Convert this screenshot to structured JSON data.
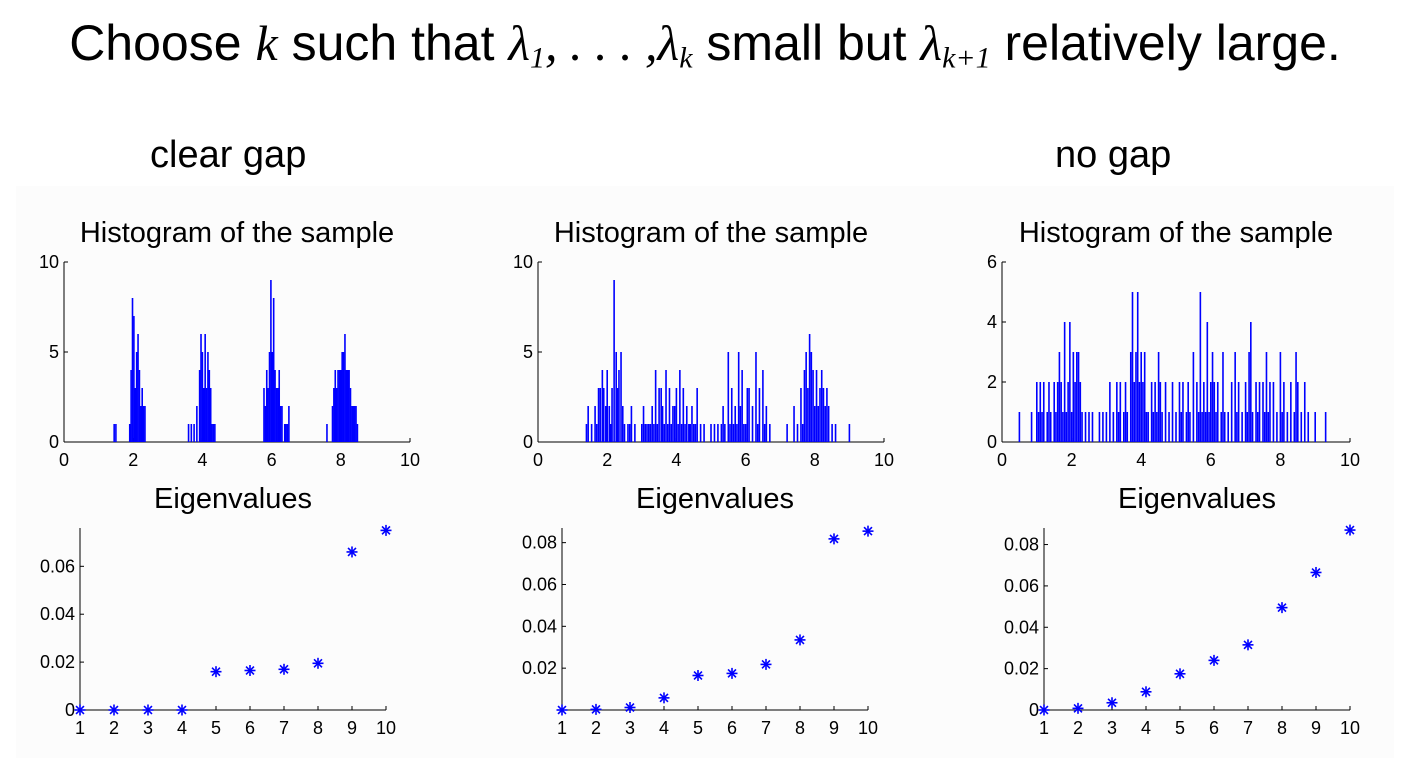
{
  "headline": {
    "choose": "Choose",
    "k": "k",
    "such_that": "such that",
    "lambda": "λ",
    "sub_1": "1",
    "sep": ", . . . ,",
    "sub_k": "k",
    "small_but": "small but",
    "sub_k1": "k+1",
    "relatively_large": "relatively large."
  },
  "labels": {
    "clear_gap": "clear gap",
    "no_gap": "no gap"
  },
  "colors": {
    "series": "#0000ff",
    "axis": "#000000",
    "background": "#ffffff"
  },
  "chart_data": [
    {
      "type": "bar",
      "title": "Histogram of the sample",
      "xlim": [
        0,
        10
      ],
      "ylim": [
        0,
        10
      ],
      "xticks": [
        0,
        2,
        4,
        6,
        8,
        10
      ],
      "yticks": [
        0,
        5,
        10
      ],
      "bin_width": 0.04,
      "bars": [
        [
          1.45,
          1
        ],
        [
          1.5,
          1
        ],
        [
          1.9,
          1
        ],
        [
          1.94,
          4
        ],
        [
          1.98,
          8
        ],
        [
          2.02,
          7
        ],
        [
          2.06,
          3
        ],
        [
          2.1,
          5
        ],
        [
          2.14,
          6
        ],
        [
          2.18,
          4
        ],
        [
          2.22,
          2
        ],
        [
          2.26,
          3
        ],
        [
          2.3,
          2
        ],
        [
          2.34,
          2
        ],
        [
          3.6,
          1
        ],
        [
          3.68,
          1
        ],
        [
          3.76,
          1
        ],
        [
          3.84,
          2
        ],
        [
          3.92,
          4
        ],
        [
          3.96,
          6
        ],
        [
          4.0,
          5
        ],
        [
          4.04,
          3
        ],
        [
          4.08,
          6
        ],
        [
          4.12,
          3
        ],
        [
          4.16,
          5
        ],
        [
          4.2,
          4
        ],
        [
          4.24,
          3
        ],
        [
          4.28,
          1
        ],
        [
          4.32,
          1
        ],
        [
          4.36,
          1
        ],
        [
          5.78,
          3
        ],
        [
          5.82,
          2
        ],
        [
          5.86,
          4
        ],
        [
          5.9,
          3
        ],
        [
          5.94,
          5
        ],
        [
          5.98,
          9
        ],
        [
          6.02,
          5
        ],
        [
          6.06,
          8
        ],
        [
          6.1,
          4
        ],
        [
          6.14,
          3
        ],
        [
          6.18,
          3
        ],
        [
          6.22,
          4
        ],
        [
          6.26,
          2
        ],
        [
          6.3,
          2
        ],
        [
          6.38,
          1
        ],
        [
          6.42,
          1
        ],
        [
          6.46,
          1
        ],
        [
          6.5,
          2
        ],
        [
          7.6,
          1
        ],
        [
          7.76,
          2
        ],
        [
          7.8,
          3
        ],
        [
          7.84,
          4
        ],
        [
          7.88,
          3
        ],
        [
          7.92,
          4
        ],
        [
          7.96,
          4
        ],
        [
          8.0,
          4
        ],
        [
          8.04,
          5
        ],
        [
          8.08,
          5
        ],
        [
          8.12,
          6
        ],
        [
          8.16,
          4
        ],
        [
          8.2,
          4
        ],
        [
          8.24,
          4
        ],
        [
          8.28,
          3
        ],
        [
          8.32,
          2
        ],
        [
          8.36,
          2
        ],
        [
          8.4,
          2
        ],
        [
          8.44,
          2
        ],
        [
          8.48,
          1
        ]
      ]
    },
    {
      "type": "bar",
      "title": "Histogram of the sample",
      "xlim": [
        0,
        10
      ],
      "ylim": [
        0,
        10
      ],
      "xticks": [
        0,
        2,
        4,
        6,
        8,
        10
      ],
      "yticks": [
        0,
        5,
        10
      ],
      "bin_width": 0.04,
      "bars": [
        [
          1.4,
          1
        ],
        [
          1.45,
          2
        ],
        [
          1.55,
          1
        ],
        [
          1.65,
          2
        ],
        [
          1.7,
          1
        ],
        [
          1.75,
          3
        ],
        [
          1.8,
          3
        ],
        [
          1.86,
          4
        ],
        [
          1.9,
          3
        ],
        [
          1.96,
          2
        ],
        [
          2.0,
          4
        ],
        [
          2.06,
          2
        ],
        [
          2.1,
          1
        ],
        [
          2.14,
          3
        ],
        [
          2.2,
          9
        ],
        [
          2.26,
          5
        ],
        [
          2.3,
          3
        ],
        [
          2.34,
          4
        ],
        [
          2.4,
          5
        ],
        [
          2.45,
          2
        ],
        [
          2.5,
          1
        ],
        [
          2.6,
          1
        ],
        [
          2.65,
          1
        ],
        [
          2.7,
          2
        ],
        [
          2.8,
          1
        ],
        [
          3.0,
          1
        ],
        [
          3.05,
          2
        ],
        [
          3.1,
          1
        ],
        [
          3.15,
          1
        ],
        [
          3.2,
          1
        ],
        [
          3.25,
          1
        ],
        [
          3.3,
          2
        ],
        [
          3.35,
          1
        ],
        [
          3.4,
          4
        ],
        [
          3.45,
          1
        ],
        [
          3.5,
          3
        ],
        [
          3.56,
          3
        ],
        [
          3.6,
          2
        ],
        [
          3.65,
          1
        ],
        [
          3.7,
          4
        ],
        [
          3.75,
          1
        ],
        [
          3.8,
          3
        ],
        [
          3.85,
          1
        ],
        [
          3.9,
          2
        ],
        [
          3.95,
          2
        ],
        [
          4.0,
          3
        ],
        [
          4.05,
          1
        ],
        [
          4.1,
          4
        ],
        [
          4.15,
          1
        ],
        [
          4.2,
          3
        ],
        [
          4.25,
          1
        ],
        [
          4.3,
          2
        ],
        [
          4.36,
          1
        ],
        [
          4.4,
          1
        ],
        [
          4.45,
          2
        ],
        [
          4.5,
          1
        ],
        [
          4.55,
          1
        ],
        [
          4.6,
          3
        ],
        [
          4.7,
          1
        ],
        [
          4.8,
          1
        ],
        [
          5.0,
          1
        ],
        [
          5.1,
          1
        ],
        [
          5.2,
          1
        ],
        [
          5.3,
          1
        ],
        [
          5.35,
          2
        ],
        [
          5.4,
          1
        ],
        [
          5.5,
          5
        ],
        [
          5.55,
          1
        ],
        [
          5.6,
          3
        ],
        [
          5.65,
          1
        ],
        [
          5.7,
          2
        ],
        [
          5.75,
          1
        ],
        [
          5.8,
          5
        ],
        [
          5.85,
          2
        ],
        [
          5.9,
          4
        ],
        [
          5.95,
          1
        ],
        [
          6.0,
          1
        ],
        [
          6.05,
          3
        ],
        [
          6.1,
          3
        ],
        [
          6.2,
          2
        ],
        [
          6.3,
          5
        ],
        [
          6.35,
          1
        ],
        [
          6.4,
          3
        ],
        [
          6.5,
          4
        ],
        [
          6.55,
          1
        ],
        [
          6.6,
          2
        ],
        [
          6.7,
          1
        ],
        [
          7.2,
          1
        ],
        [
          7.4,
          2
        ],
        [
          7.5,
          1
        ],
        [
          7.6,
          3
        ],
        [
          7.65,
          1
        ],
        [
          7.7,
          4
        ],
        [
          7.75,
          5
        ],
        [
          7.8,
          3
        ],
        [
          7.85,
          6
        ],
        [
          7.9,
          5
        ],
        [
          7.95,
          4
        ],
        [
          8.0,
          2
        ],
        [
          8.05,
          4
        ],
        [
          8.1,
          2
        ],
        [
          8.15,
          3
        ],
        [
          8.2,
          4
        ],
        [
          8.25,
          3
        ],
        [
          8.3,
          2
        ],
        [
          8.35,
          3
        ],
        [
          8.4,
          2
        ],
        [
          8.5,
          1
        ],
        [
          8.6,
          1
        ],
        [
          9.0,
          1
        ]
      ]
    },
    {
      "type": "bar",
      "title": "Histogram of the sample",
      "xlim": [
        0,
        10
      ],
      "ylim": [
        0,
        6
      ],
      "xticks": [
        0,
        2,
        4,
        6,
        8,
        10
      ],
      "yticks": [
        0,
        2,
        4,
        6
      ],
      "bin_width": 0.04,
      "bars": [
        [
          0.5,
          1
        ],
        [
          0.85,
          1
        ],
        [
          1.0,
          2
        ],
        [
          1.05,
          1
        ],
        [
          1.1,
          2
        ],
        [
          1.15,
          1
        ],
        [
          1.2,
          2
        ],
        [
          1.3,
          1
        ],
        [
          1.35,
          2
        ],
        [
          1.4,
          1
        ],
        [
          1.5,
          2
        ],
        [
          1.55,
          1
        ],
        [
          1.6,
          2
        ],
        [
          1.65,
          3
        ],
        [
          1.7,
          2
        ],
        [
          1.75,
          1
        ],
        [
          1.8,
          4
        ],
        [
          1.85,
          1
        ],
        [
          1.9,
          2
        ],
        [
          1.95,
          4
        ],
        [
          2.0,
          1
        ],
        [
          2.05,
          3
        ],
        [
          2.1,
          2
        ],
        [
          2.15,
          3
        ],
        [
          2.2,
          3
        ],
        [
          2.25,
          2
        ],
        [
          2.3,
          1
        ],
        [
          2.4,
          1
        ],
        [
          2.5,
          1
        ],
        [
          2.6,
          1
        ],
        [
          2.8,
          1
        ],
        [
          2.9,
          1
        ],
        [
          3.0,
          1
        ],
        [
          3.1,
          2
        ],
        [
          3.2,
          1
        ],
        [
          3.3,
          2
        ],
        [
          3.35,
          1
        ],
        [
          3.4,
          2
        ],
        [
          3.5,
          1
        ],
        [
          3.55,
          2
        ],
        [
          3.6,
          1
        ],
        [
          3.7,
          3
        ],
        [
          3.75,
          5
        ],
        [
          3.8,
          2
        ],
        [
          3.85,
          3
        ],
        [
          3.9,
          5
        ],
        [
          3.95,
          2
        ],
        [
          4.0,
          3
        ],
        [
          4.05,
          2
        ],
        [
          4.1,
          3
        ],
        [
          4.15,
          1
        ],
        [
          4.2,
          1
        ],
        [
          4.3,
          2
        ],
        [
          4.35,
          1
        ],
        [
          4.4,
          2
        ],
        [
          4.45,
          1
        ],
        [
          4.5,
          3
        ],
        [
          4.55,
          2
        ],
        [
          4.6,
          1
        ],
        [
          4.7,
          2
        ],
        [
          4.8,
          1
        ],
        [
          4.9,
          2
        ],
        [
          5.0,
          1
        ],
        [
          5.1,
          2
        ],
        [
          5.15,
          1
        ],
        [
          5.2,
          2
        ],
        [
          5.3,
          1
        ],
        [
          5.35,
          2
        ],
        [
          5.4,
          1
        ],
        [
          5.5,
          3
        ],
        [
          5.6,
          2
        ],
        [
          5.65,
          1
        ],
        [
          5.7,
          5
        ],
        [
          5.75,
          1
        ],
        [
          5.8,
          2
        ],
        [
          5.85,
          1
        ],
        [
          5.9,
          4
        ],
        [
          5.95,
          1
        ],
        [
          6.0,
          2
        ],
        [
          6.05,
          3
        ],
        [
          6.1,
          2
        ],
        [
          6.15,
          1
        ],
        [
          6.2,
          2
        ],
        [
          6.3,
          1
        ],
        [
          6.35,
          3
        ],
        [
          6.4,
          1
        ],
        [
          6.5,
          1
        ],
        [
          6.6,
          2
        ],
        [
          6.7,
          3
        ],
        [
          6.75,
          1
        ],
        [
          6.8,
          2
        ],
        [
          6.9,
          1
        ],
        [
          7.0,
          2
        ],
        [
          7.05,
          1
        ],
        [
          7.1,
          3
        ],
        [
          7.15,
          4
        ],
        [
          7.2,
          1
        ],
        [
          7.3,
          2
        ],
        [
          7.35,
          1
        ],
        [
          7.4,
          2
        ],
        [
          7.5,
          2
        ],
        [
          7.55,
          1
        ],
        [
          7.6,
          3
        ],
        [
          7.65,
          1
        ],
        [
          7.7,
          2
        ],
        [
          7.8,
          2
        ],
        [
          7.9,
          1
        ],
        [
          8.0,
          3
        ],
        [
          8.05,
          1
        ],
        [
          8.1,
          2
        ],
        [
          8.2,
          1
        ],
        [
          8.3,
          2
        ],
        [
          8.4,
          1
        ],
        [
          8.45,
          3
        ],
        [
          8.5,
          2
        ],
        [
          8.6,
          1
        ],
        [
          8.7,
          2
        ],
        [
          8.8,
          1
        ],
        [
          9.0,
          1
        ],
        [
          9.3,
          1
        ]
      ]
    },
    {
      "type": "scatter",
      "title": "Eigenvalues",
      "marker": "*",
      "x": [
        1,
        2,
        3,
        4,
        5,
        6,
        7,
        8,
        9,
        10
      ],
      "y": [
        0,
        0,
        0,
        0,
        0.016,
        0.0165,
        0.017,
        0.0195,
        0.066,
        0.075
      ],
      "xlim": [
        1,
        10
      ],
      "ylim": [
        0,
        0.076
      ],
      "xticks": [
        1,
        2,
        3,
        4,
        5,
        6,
        7,
        8,
        9,
        10
      ],
      "yticks": [
        0,
        0.02,
        0.04,
        0.06
      ],
      "yticklabels": [
        "0",
        "0.02",
        "0.04",
        "0.06"
      ]
    },
    {
      "type": "scatter",
      "title": "Eigenvalues",
      "marker": "*",
      "x": [
        1,
        2,
        3,
        4,
        5,
        6,
        7,
        8,
        9,
        10
      ],
      "y": [
        0,
        0.0003,
        0.0012,
        0.0058,
        0.0165,
        0.0175,
        0.0218,
        0.0335,
        0.0818,
        0.0855
      ],
      "xlim": [
        1,
        10
      ],
      "ylim": [
        0,
        0.087
      ],
      "xticks": [
        1,
        2,
        3,
        4,
        5,
        6,
        7,
        8,
        9,
        10
      ],
      "yticks": [
        0,
        0.02,
        0.04,
        0.06,
        0.08
      ],
      "yticklabels": [
        "",
        "0.02",
        "0.04",
        "0.06",
        "0.08"
      ]
    },
    {
      "type": "scatter",
      "title": "Eigenvalues",
      "marker": "*",
      "x": [
        1,
        2,
        3,
        4,
        5,
        6,
        7,
        8,
        9,
        10
      ],
      "y": [
        0,
        0.0008,
        0.0035,
        0.0088,
        0.0175,
        0.024,
        0.0315,
        0.0495,
        0.0665,
        0.087
      ],
      "xlim": [
        1,
        10
      ],
      "ylim": [
        0,
        0.088
      ],
      "xticks": [
        1,
        2,
        3,
        4,
        5,
        6,
        7,
        8,
        9,
        10
      ],
      "yticks": [
        0,
        0.02,
        0.04,
        0.06,
        0.08
      ],
      "yticklabels": [
        "0",
        "0.02",
        "0.04",
        "0.06",
        "0.08"
      ]
    }
  ]
}
